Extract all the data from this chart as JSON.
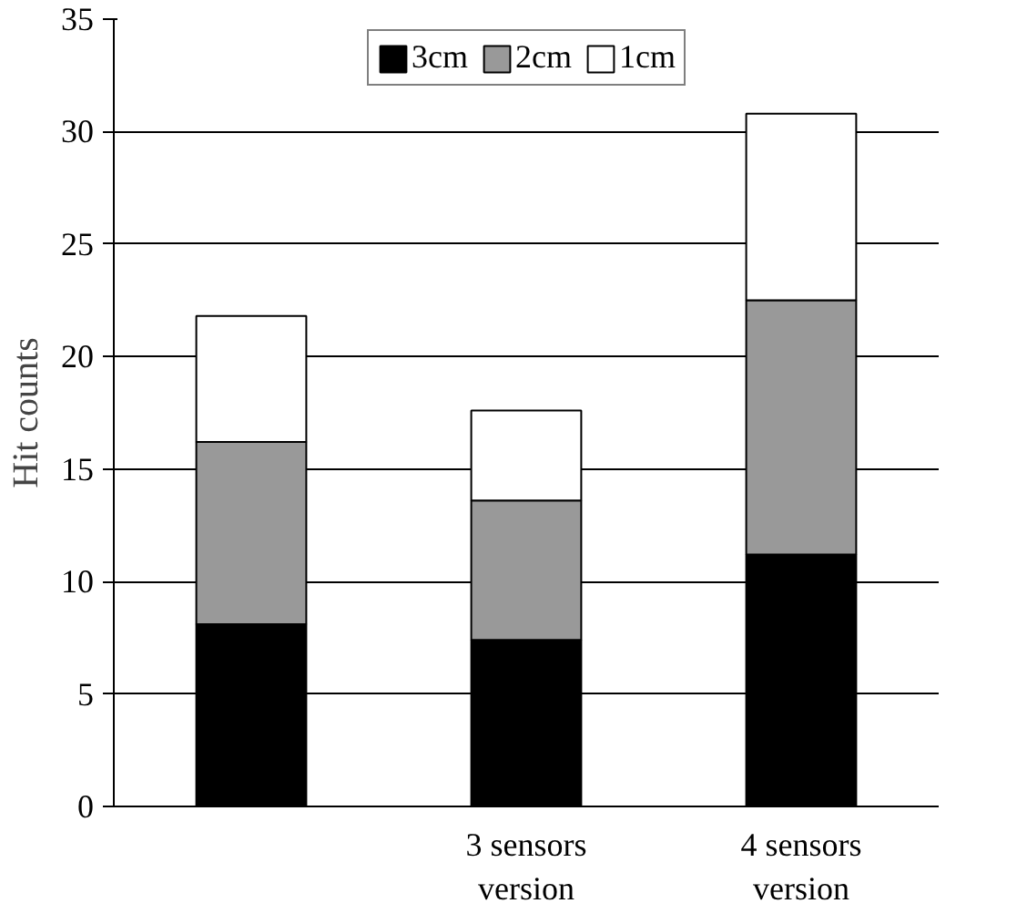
{
  "chart_data": {
    "type": "bar",
    "stacked": true,
    "ylabel": "Hit counts",
    "categories": [
      null,
      "3 sensors\nversion",
      "4 sensors\nversion"
    ],
    "series": [
      {
        "name": "3cm",
        "color": "#000000",
        "values": [
          8.1,
          7.4,
          11.2
        ]
      },
      {
        "name": "2cm",
        "color": "#999999",
        "values": [
          8.1,
          6.2,
          11.3
        ]
      },
      {
        "name": "1cm",
        "color": "#ffffff",
        "values": [
          5.6,
          4.0,
          8.3
        ]
      }
    ],
    "ylim": [
      0,
      35
    ],
    "yticks": [
      0,
      5,
      10,
      15,
      20,
      25,
      30,
      35
    ],
    "grid": "y",
    "legend": "top"
  }
}
